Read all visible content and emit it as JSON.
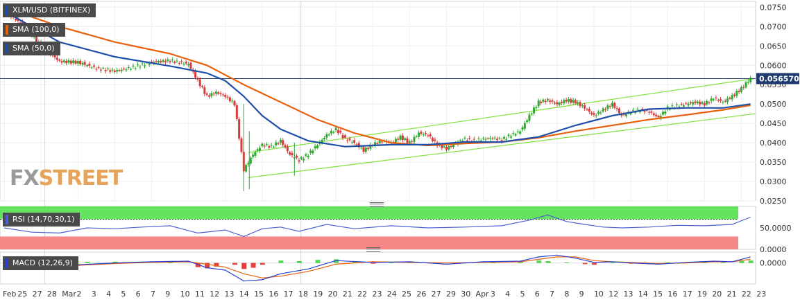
{
  "panels": {
    "price_title": "XLM/USD (BITFINEX)",
    "sma100_label": "SMA (100,0)",
    "sma50_label": "SMA (50,0)",
    "rsi_label": "RSI (14,70,30,1)",
    "macd_label": "MACD (12,26,9)",
    "watermark_a": "FX",
    "watermark_b": "STREET"
  },
  "colors": {
    "sma100": "#e8600c",
    "sma50": "#1f4fa8",
    "channel": "#7ee03c",
    "candle_up": "#2eaa2e",
    "candle_down": "#d63a3a",
    "rsi_line": "#4a5fd0",
    "rsi_overbought": "#52e04c",
    "rsi_oversold": "#f47a7a",
    "macd_line": "#2a3fd0",
    "macd_signal": "#e8600c",
    "hist_up": "#2ecf2e",
    "hist_down": "#e02020",
    "last_price_box": "#1f3a6e"
  },
  "chart_data": {
    "type": "line",
    "title": "XLM/USD (BITFINEX)",
    "x_tick_labels": [
      "Feb",
      "25",
      "27",
      "28",
      "Mar",
      "2",
      "3",
      "4",
      "5",
      "6",
      "7",
      "9",
      "10",
      "11",
      "12",
      "13",
      "14",
      "15",
      "16",
      "17",
      "18",
      "19",
      "20",
      "21",
      "22",
      "23",
      "24",
      "25",
      "26",
      "27",
      "29",
      "30",
      "Apr",
      "3",
      "4",
      "5",
      "6",
      "7",
      "8",
      "9",
      "10",
      "12",
      "13",
      "14",
      "15",
      "16",
      "17",
      "19",
      "20",
      "21",
      "22",
      "23"
    ],
    "price_axis": {
      "ticks": [
        "0.0750",
        "0.0700",
        "0.0650",
        "0.0600",
        "0.0550",
        "0.0500",
        "0.0450",
        "0.0400",
        "0.0350",
        "0.0300",
        "0.0250"
      ],
      "ylim": [
        0.025,
        0.0765
      ]
    },
    "last_price": "0.056570",
    "close_path": [
      {
        "x": 0,
        "y": 0.074
      },
      {
        "x": 2,
        "y": 0.0705
      },
      {
        "x": 4,
        "y": 0.065
      },
      {
        "x": 6,
        "y": 0.061
      },
      {
        "x": 8,
        "y": 0.0608
      },
      {
        "x": 10,
        "y": 0.0592
      },
      {
        "x": 12,
        "y": 0.0585
      },
      {
        "x": 14,
        "y": 0.0595
      },
      {
        "x": 16,
        "y": 0.0608
      },
      {
        "x": 18,
        "y": 0.0612
      },
      {
        "x": 20,
        "y": 0.0603
      },
      {
        "x": 21,
        "y": 0.056
      },
      {
        "x": 22,
        "y": 0.052
      },
      {
        "x": 23,
        "y": 0.053
      },
      {
        "x": 24,
        "y": 0.052
      },
      {
        "x": 25,
        "y": 0.05
      },
      {
        "x": 26,
        "y": 0.033
      },
      {
        "x": 27,
        "y": 0.037
      },
      {
        "x": 28,
        "y": 0.0395
      },
      {
        "x": 29,
        "y": 0.039
      },
      {
        "x": 30,
        "y": 0.0405
      },
      {
        "x": 31,
        "y": 0.037
      },
      {
        "x": 32,
        "y": 0.0355
      },
      {
        "x": 33,
        "y": 0.037
      },
      {
        "x": 34,
        "y": 0.0395
      },
      {
        "x": 35,
        "y": 0.042
      },
      {
        "x": 36,
        "y": 0.0435
      },
      {
        "x": 37,
        "y": 0.041
      },
      {
        "x": 38,
        "y": 0.04
      },
      {
        "x": 39,
        "y": 0.038
      },
      {
        "x": 40,
        "y": 0.0395
      },
      {
        "x": 41,
        "y": 0.0405
      },
      {
        "x": 42,
        "y": 0.04
      },
      {
        "x": 43,
        "y": 0.0415
      },
      {
        "x": 44,
        "y": 0.04
      },
      {
        "x": 45,
        "y": 0.0425
      },
      {
        "x": 46,
        "y": 0.042
      },
      {
        "x": 47,
        "y": 0.0395
      },
      {
        "x": 48,
        "y": 0.0385
      },
      {
        "x": 49,
        "y": 0.04
      },
      {
        "x": 50,
        "y": 0.041
      },
      {
        "x": 51,
        "y": 0.0405
      },
      {
        "x": 52,
        "y": 0.041
      },
      {
        "x": 53,
        "y": 0.0412
      },
      {
        "x": 54,
        "y": 0.0408
      },
      {
        "x": 55,
        "y": 0.042
      },
      {
        "x": 56,
        "y": 0.043
      },
      {
        "x": 57,
        "y": 0.047
      },
      {
        "x": 58,
        "y": 0.0505
      },
      {
        "x": 59,
        "y": 0.051
      },
      {
        "x": 60,
        "y": 0.05
      },
      {
        "x": 61,
        "y": 0.051
      },
      {
        "x": 62,
        "y": 0.0505
      },
      {
        "x": 63,
        "y": 0.049
      },
      {
        "x": 64,
        "y": 0.047
      },
      {
        "x": 65,
        "y": 0.0485
      },
      {
        "x": 66,
        "y": 0.05
      },
      {
        "x": 67,
        "y": 0.047
      },
      {
        "x": 68,
        "y": 0.048
      },
      {
        "x": 69,
        "y": 0.0485
      },
      {
        "x": 70,
        "y": 0.048
      },
      {
        "x": 71,
        "y": 0.0465
      },
      {
        "x": 72,
        "y": 0.049
      },
      {
        "x": 73,
        "y": 0.0495
      },
      {
        "x": 74,
        "y": 0.05
      },
      {
        "x": 75,
        "y": 0.0505
      },
      {
        "x": 76,
        "y": 0.05
      },
      {
        "x": 77,
        "y": 0.0515
      },
      {
        "x": 78,
        "y": 0.0505
      },
      {
        "x": 79,
        "y": 0.052
      },
      {
        "x": 80,
        "y": 0.054
      },
      {
        "x": 81,
        "y": 0.0566
      }
    ],
    "sma100": [
      {
        "x": 0,
        "y": 0.075
      },
      {
        "x": 6,
        "y": 0.07
      },
      {
        "x": 12,
        "y": 0.066
      },
      {
        "x": 18,
        "y": 0.063
      },
      {
        "x": 22,
        "y": 0.06
      },
      {
        "x": 26,
        "y": 0.055
      },
      {
        "x": 30,
        "y": 0.0505
      },
      {
        "x": 34,
        "y": 0.046
      },
      {
        "x": 38,
        "y": 0.0425
      },
      {
        "x": 42,
        "y": 0.04
      },
      {
        "x": 46,
        "y": 0.0393
      },
      {
        "x": 50,
        "y": 0.0398
      },
      {
        "x": 54,
        "y": 0.0402
      },
      {
        "x": 58,
        "y": 0.0413
      },
      {
        "x": 62,
        "y": 0.043
      },
      {
        "x": 66,
        "y": 0.0445
      },
      {
        "x": 70,
        "y": 0.046
      },
      {
        "x": 74,
        "y": 0.0472
      },
      {
        "x": 78,
        "y": 0.0485
      },
      {
        "x": 81,
        "y": 0.0497
      }
    ],
    "sma50": [
      {
        "x": 0,
        "y": 0.074
      },
      {
        "x": 6,
        "y": 0.066
      },
      {
        "x": 12,
        "y": 0.0622
      },
      {
        "x": 18,
        "y": 0.0598
      },
      {
        "x": 22,
        "y": 0.058
      },
      {
        "x": 24,
        "y": 0.056
      },
      {
        "x": 26,
        "y": 0.052
      },
      {
        "x": 28,
        "y": 0.047
      },
      {
        "x": 30,
        "y": 0.0435
      },
      {
        "x": 33,
        "y": 0.0405
      },
      {
        "x": 37,
        "y": 0.039
      },
      {
        "x": 42,
        "y": 0.0395
      },
      {
        "x": 46,
        "y": 0.0395
      },
      {
        "x": 50,
        "y": 0.0402
      },
      {
        "x": 54,
        "y": 0.0402
      },
      {
        "x": 58,
        "y": 0.0415
      },
      {
        "x": 62,
        "y": 0.0445
      },
      {
        "x": 66,
        "y": 0.047
      },
      {
        "x": 70,
        "y": 0.0487
      },
      {
        "x": 74,
        "y": 0.049
      },
      {
        "x": 78,
        "y": 0.049
      },
      {
        "x": 81,
        "y": 0.05
      }
    ],
    "channel_upper": [
      {
        "x": 26.5,
        "y": 0.0375
      },
      {
        "x": 81.5,
        "y": 0.0566
      }
    ],
    "channel_lower": [
      {
        "x": 26.5,
        "y": 0.031
      },
      {
        "x": 81.5,
        "y": 0.0475
      }
    ],
    "rsi": {
      "ticks": [
        "50.0000",
        "0.0000"
      ],
      "ylim": [
        0,
        100
      ],
      "overbought": 70,
      "oversold": 30,
      "values": [
        {
          "x": 0,
          "y": 50
        },
        {
          "x": 3,
          "y": 40
        },
        {
          "x": 6,
          "y": 38
        },
        {
          "x": 9,
          "y": 50
        },
        {
          "x": 12,
          "y": 48
        },
        {
          "x": 15,
          "y": 52
        },
        {
          "x": 18,
          "y": 55
        },
        {
          "x": 21,
          "y": 38
        },
        {
          "x": 24,
          "y": 45
        },
        {
          "x": 26,
          "y": 30
        },
        {
          "x": 28,
          "y": 48
        },
        {
          "x": 30,
          "y": 52
        },
        {
          "x": 32,
          "y": 42
        },
        {
          "x": 35,
          "y": 58
        },
        {
          "x": 38,
          "y": 48
        },
        {
          "x": 42,
          "y": 55
        },
        {
          "x": 46,
          "y": 50
        },
        {
          "x": 50,
          "y": 52
        },
        {
          "x": 54,
          "y": 55
        },
        {
          "x": 57,
          "y": 68
        },
        {
          "x": 59,
          "y": 80
        },
        {
          "x": 61,
          "y": 65
        },
        {
          "x": 63,
          "y": 58
        },
        {
          "x": 65,
          "y": 52
        },
        {
          "x": 67,
          "y": 50
        },
        {
          "x": 70,
          "y": 52
        },
        {
          "x": 73,
          "y": 56
        },
        {
          "x": 76,
          "y": 55
        },
        {
          "x": 79,
          "y": 58
        },
        {
          "x": 81,
          "y": 75
        }
      ]
    },
    "macd": {
      "ticks": [
        "0.0000"
      ],
      "ylim": [
        -0.0035,
        0.0018
      ],
      "macd_line": [
        {
          "x": 0,
          "y": -0.0002
        },
        {
          "x": 4,
          "y": -0.0008
        },
        {
          "x": 8,
          "y": -0.0003
        },
        {
          "x": 12,
          "y": 0.0
        },
        {
          "x": 16,
          "y": 0.0002
        },
        {
          "x": 20,
          "y": 0.0003
        },
        {
          "x": 22,
          "y": -0.0008
        },
        {
          "x": 24,
          "y": -0.0012
        },
        {
          "x": 26,
          "y": -0.003
        },
        {
          "x": 28,
          "y": -0.0028
        },
        {
          "x": 30,
          "y": -0.0018
        },
        {
          "x": 33,
          "y": -0.001
        },
        {
          "x": 36,
          "y": 0.0004
        },
        {
          "x": 40,
          "y": 0.0001
        },
        {
          "x": 44,
          "y": 0.0002
        },
        {
          "x": 48,
          "y": -0.0002
        },
        {
          "x": 52,
          "y": 0.0002
        },
        {
          "x": 56,
          "y": 0.0003
        },
        {
          "x": 58,
          "y": 0.001
        },
        {
          "x": 60,
          "y": 0.0013
        },
        {
          "x": 62,
          "y": 0.0008
        },
        {
          "x": 64,
          "y": 0.0001
        },
        {
          "x": 66,
          "y": 0.0002
        },
        {
          "x": 68,
          "y": 0.0
        },
        {
          "x": 71,
          "y": -0.0002
        },
        {
          "x": 74,
          "y": 0.0001
        },
        {
          "x": 77,
          "y": 0.0003
        },
        {
          "x": 79,
          "y": 0.0002
        },
        {
          "x": 81,
          "y": 0.001
        }
      ],
      "signal_line": [
        {
          "x": 0,
          "y": -0.0001
        },
        {
          "x": 4,
          "y": -0.0005
        },
        {
          "x": 8,
          "y": -0.0004
        },
        {
          "x": 12,
          "y": -0.0001
        },
        {
          "x": 16,
          "y": 0.0001
        },
        {
          "x": 20,
          "y": 0.0002
        },
        {
          "x": 22,
          "y": -0.0002
        },
        {
          "x": 24,
          "y": -0.0007
        },
        {
          "x": 26,
          "y": -0.0018
        },
        {
          "x": 28,
          "y": -0.0025
        },
        {
          "x": 30,
          "y": -0.0022
        },
        {
          "x": 33,
          "y": -0.0014
        },
        {
          "x": 36,
          "y": -0.0002
        },
        {
          "x": 40,
          "y": 0.0002
        },
        {
          "x": 44,
          "y": 0.0001
        },
        {
          "x": 48,
          "y": 0.0
        },
        {
          "x": 52,
          "y": 0.0001
        },
        {
          "x": 56,
          "y": 0.0002
        },
        {
          "x": 58,
          "y": 0.0006
        },
        {
          "x": 60,
          "y": 0.001
        },
        {
          "x": 62,
          "y": 0.001
        },
        {
          "x": 64,
          "y": 0.0004
        },
        {
          "x": 66,
          "y": 0.0002
        },
        {
          "x": 68,
          "y": 0.0001
        },
        {
          "x": 71,
          "y": -0.0001
        },
        {
          "x": 74,
          "y": 0.0
        },
        {
          "x": 77,
          "y": 0.0002
        },
        {
          "x": 79,
          "y": 0.0002
        },
        {
          "x": 81,
          "y": 0.0006
        }
      ],
      "histogram": [
        {
          "x": 2,
          "y": 0.0003
        },
        {
          "x": 4,
          "y": -0.0002
        },
        {
          "x": 6,
          "y": 0.0002
        },
        {
          "x": 9,
          "y": 0.0002
        },
        {
          "x": 12,
          "y": 0.0002
        },
        {
          "x": 15,
          "y": 0.0001
        },
        {
          "x": 18,
          "y": 0.0001
        },
        {
          "x": 21,
          "y": -0.0007
        },
        {
          "x": 22,
          "y": -0.0009
        },
        {
          "x": 23,
          "y": -0.0006
        },
        {
          "x": 25,
          "y": -0.0003
        },
        {
          "x": 26,
          "y": -0.001
        },
        {
          "x": 27,
          "y": -0.0008
        },
        {
          "x": 28,
          "y": -0.0003
        },
        {
          "x": 30,
          "y": 0.0004
        },
        {
          "x": 32,
          "y": 0.0003
        },
        {
          "x": 34,
          "y": 0.0005
        },
        {
          "x": 36,
          "y": 0.0006
        },
        {
          "x": 38,
          "y": 0.0002
        },
        {
          "x": 40,
          "y": -0.0001
        },
        {
          "x": 42,
          "y": 0.0001
        },
        {
          "x": 44,
          "y": 0.0001
        },
        {
          "x": 47,
          "y": -0.0001
        },
        {
          "x": 50,
          "y": 0.0001
        },
        {
          "x": 53,
          "y": 0.0001
        },
        {
          "x": 56,
          "y": 0.0002
        },
        {
          "x": 58,
          "y": 0.0004
        },
        {
          "x": 59,
          "y": 0.0003
        },
        {
          "x": 61,
          "y": 0.0001
        },
        {
          "x": 63,
          "y": -0.0002
        },
        {
          "x": 64,
          "y": -0.0003
        },
        {
          "x": 66,
          "y": 0.0001
        },
        {
          "x": 68,
          "y": -0.0001
        },
        {
          "x": 70,
          "y": -0.0002
        },
        {
          "x": 72,
          "y": 0.0001
        },
        {
          "x": 74,
          "y": 0.0001
        },
        {
          "x": 76,
          "y": 0.0002
        },
        {
          "x": 78,
          "y": 0.0001
        },
        {
          "x": 80,
          "y": 0.0003
        },
        {
          "x": 81,
          "y": 0.0004
        }
      ]
    }
  }
}
